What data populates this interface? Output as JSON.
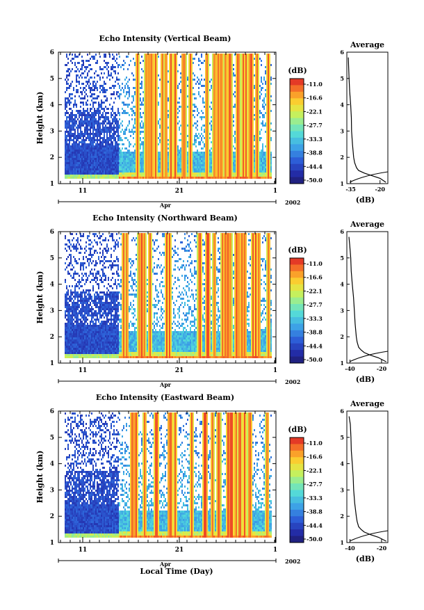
{
  "figure": {
    "x_axis_title": "Local Time (Day)",
    "month_label": "Apr",
    "year_label": "2002"
  },
  "chart_data": [
    {
      "type": "heatmap",
      "title": "Echo Intensity (Vertical Beam)",
      "ylabel": "Height (km)",
      "ylim": [
        1,
        6
      ],
      "y_ticks": [
        "1",
        "2",
        "3",
        "4",
        "5",
        "6"
      ],
      "x_ticks": [
        "11",
        "21",
        "1"
      ],
      "month_label": "Apr",
      "year_label": "2002",
      "colorbar": {
        "unit": "(dB)",
        "range": [
          -50,
          -8
        ],
        "tick_labels": [
          "-11.0",
          "-16.6",
          "-22.1",
          "-27.7",
          "-33.3",
          "-38.8",
          "-44.4",
          "-50.0"
        ]
      },
      "average_profile": {
        "title": "Average",
        "xlabel": "(dB)",
        "xlim": [
          -37,
          -16
        ],
        "x_ticks": [
          -35,
          -20
        ],
        "y": [
          1.05,
          1.2,
          1.3,
          1.4,
          1.5,
          1.6,
          1.8,
          2.0,
          2.5,
          3.0,
          3.5,
          4.0,
          4.5,
          5.0,
          5.5,
          5.8
        ],
        "x": [
          -17,
          -20,
          -24,
          -28,
          -31,
          -32,
          -33,
          -33.5,
          -34,
          -34.5,
          -34.8,
          -35,
          -35.3,
          -35.6,
          -36,
          -36.5
        ]
      }
    },
    {
      "type": "heatmap",
      "title": "Echo Intensity (Northward Beam)",
      "ylabel": "Height (km)",
      "ylim": [
        1,
        6
      ],
      "y_ticks": [
        "1",
        "2",
        "3",
        "4",
        "5",
        "6"
      ],
      "x_ticks": [
        "11",
        "21",
        "1"
      ],
      "month_label": "Apr",
      "year_label": "2002",
      "colorbar": {
        "unit": "(dB)",
        "range": [
          -50,
          -8
        ],
        "tick_labels": [
          "-11.0",
          "-16.6",
          "-22.1",
          "-27.7",
          "-33.3",
          "-38.8",
          "-44.4",
          "-50.0"
        ]
      },
      "average_profile": {
        "title": "Average",
        "xlabel": "(dB)",
        "xlim": [
          -42,
          -16
        ],
        "x_ticks": [
          -40,
          -20
        ],
        "y": [
          1.05,
          1.2,
          1.3,
          1.4,
          1.5,
          1.6,
          1.8,
          2.0,
          2.5,
          3.0,
          3.5,
          4.0,
          4.5,
          5.0,
          5.5,
          5.8
        ],
        "x": [
          -17,
          -22,
          -27,
          -31,
          -33,
          -34.5,
          -35.5,
          -36,
          -37,
          -37.5,
          -38,
          -38.5,
          -39,
          -39.5,
          -40,
          -40.5
        ]
      }
    },
    {
      "type": "heatmap",
      "title": "Echo Intensity (Eastward Beam)",
      "ylabel": "Height (km)",
      "ylim": [
        1,
        6
      ],
      "y_ticks": [
        "1",
        "2",
        "3",
        "4",
        "5",
        "6"
      ],
      "x_ticks": [
        "11",
        "21",
        "1"
      ],
      "month_label": "Apr",
      "year_label": "2002",
      "colorbar": {
        "unit": "(dB)",
        "range": [
          -50,
          -8
        ],
        "tick_labels": [
          "-11.0",
          "-16.6",
          "-22.1",
          "-27.7",
          "-33.3",
          "-38.8",
          "-44.4",
          "-50.0"
        ]
      },
      "average_profile": {
        "title": "Average",
        "xlabel": "(dB)",
        "xlim": [
          -42,
          -16
        ],
        "x_ticks": [
          -40,
          -20
        ],
        "y": [
          1.05,
          1.2,
          1.3,
          1.4,
          1.5,
          1.6,
          1.8,
          2.0,
          2.5,
          3.0,
          3.5,
          4.0,
          4.5,
          5.0,
          5.5,
          5.8
        ],
        "x": [
          -17,
          -22,
          -27,
          -31,
          -33,
          -34.5,
          -35.5,
          -36,
          -37,
          -37.5,
          -38,
          -38.5,
          -39,
          -39.5,
          -40,
          -40.5
        ]
      }
    }
  ]
}
